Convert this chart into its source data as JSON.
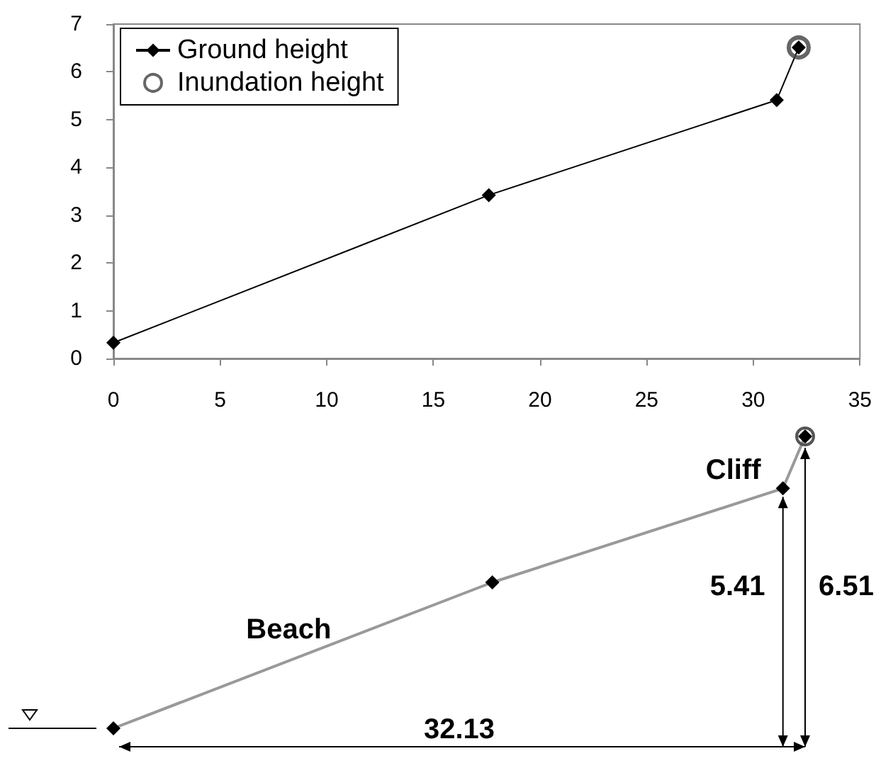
{
  "chart_data": [
    {
      "type": "line",
      "x": [
        0,
        17.6,
        31.1,
        32.13
      ],
      "xlim": [
        0,
        35
      ],
      "xticks": [
        0,
        5,
        10,
        15,
        20,
        25,
        30,
        35
      ],
      "ylim": [
        0,
        7
      ],
      "yticks": [
        0,
        1,
        2,
        3,
        4,
        5,
        6,
        7
      ],
      "grid": false,
      "legend": "top left",
      "series": [
        {
          "name": "Ground height",
          "type": "line",
          "color": "#000000",
          "marker": "diamond",
          "values": [
            0.33,
            3.42,
            5.41,
            6.51
          ]
        },
        {
          "name": "Inundation height",
          "type": "scatter",
          "color": "#404040",
          "marker": "circle",
          "x": [
            32.13
          ],
          "values": [
            6.51
          ]
        }
      ]
    },
    {
      "type": "other",
      "annotations": [
        "Beach",
        "Cliff",
        "5.41",
        "6.51",
        "32.13"
      ]
    }
  ]
}
